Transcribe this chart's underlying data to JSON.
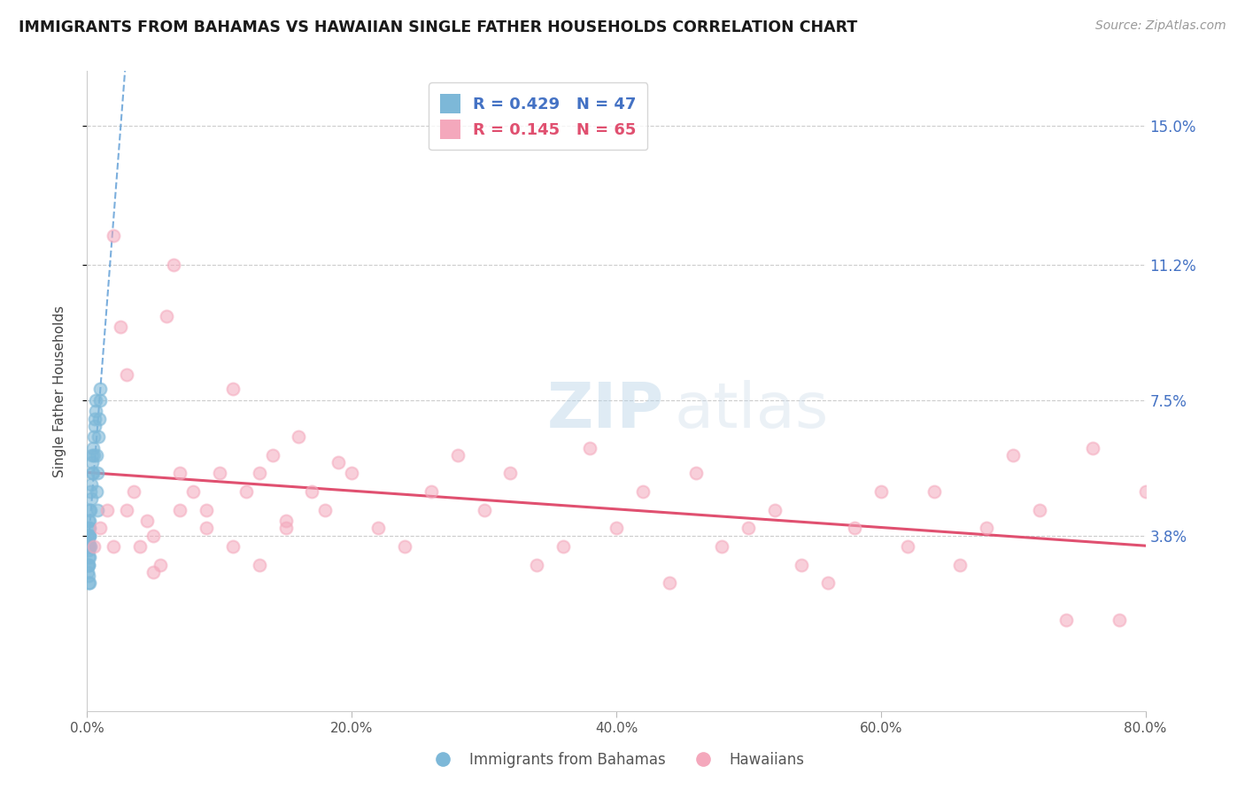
{
  "title": "IMMIGRANTS FROM BAHAMAS VS HAWAIIAN SINGLE FATHER HOUSEHOLDS CORRELATION CHART",
  "source": "Source: ZipAtlas.com",
  "ylabel": "Single Father Households",
  "r_blue": 0.429,
  "n_blue": 47,
  "r_pink": 0.145,
  "n_pink": 65,
  "blue_color": "#7db8d8",
  "pink_color": "#f4a8bc",
  "blue_line_color": "#5b9bd5",
  "pink_line_color": "#e05070",
  "legend_label_blue": "Immigrants from Bahamas",
  "legend_label_pink": "Hawaiians",
  "xlim": [
    0.0,
    80.0
  ],
  "ylim": [
    -1.0,
    16.5
  ],
  "yticks": [
    3.8,
    7.5,
    11.2,
    15.0
  ],
  "xticks": [
    0.0,
    20.0,
    40.0,
    60.0,
    80.0
  ],
  "blue_x": [
    0.05,
    0.05,
    0.05,
    0.05,
    0.08,
    0.08,
    0.08,
    0.08,
    0.1,
    0.1,
    0.1,
    0.1,
    0.12,
    0.12,
    0.12,
    0.15,
    0.15,
    0.15,
    0.15,
    0.18,
    0.18,
    0.2,
    0.2,
    0.22,
    0.22,
    0.25,
    0.28,
    0.3,
    0.35,
    0.38,
    0.4,
    0.42,
    0.45,
    0.48,
    0.5,
    0.55,
    0.6,
    0.62,
    0.65,
    0.7,
    0.72,
    0.75,
    0.8,
    0.85,
    0.9,
    0.95,
    1.0
  ],
  "blue_y": [
    3.0,
    3.5,
    3.8,
    2.8,
    3.2,
    3.6,
    2.5,
    3.0,
    3.4,
    3.8,
    4.2,
    2.7,
    3.5,
    4.0,
    3.0,
    3.8,
    4.5,
    3.2,
    2.5,
    3.5,
    4.0,
    4.2,
    3.8,
    4.5,
    3.5,
    5.0,
    4.8,
    5.2,
    6.0,
    5.5,
    5.8,
    5.5,
    6.2,
    6.0,
    6.5,
    6.8,
    7.0,
    7.2,
    7.5,
    5.0,
    6.0,
    4.5,
    5.5,
    6.5,
    7.0,
    7.5,
    7.8
  ],
  "pink_x": [
    0.5,
    1.0,
    1.5,
    2.0,
    2.5,
    3.0,
    3.5,
    4.0,
    4.5,
    5.0,
    5.5,
    6.0,
    6.5,
    7.0,
    8.0,
    9.0,
    10.0,
    11.0,
    12.0,
    13.0,
    14.0,
    15.0,
    16.0,
    17.0,
    18.0,
    19.0,
    20.0,
    22.0,
    24.0,
    26.0,
    28.0,
    30.0,
    32.0,
    34.0,
    36.0,
    38.0,
    40.0,
    42.0,
    44.0,
    46.0,
    48.0,
    50.0,
    52.0,
    54.0,
    56.0,
    58.0,
    60.0,
    62.0,
    64.0,
    66.0,
    68.0,
    70.0,
    72.0,
    74.0,
    76.0,
    78.0,
    80.0,
    3.0,
    5.0,
    7.0,
    9.0,
    11.0,
    13.0,
    15.0,
    2.0
  ],
  "pink_y": [
    3.5,
    4.0,
    4.5,
    12.0,
    9.5,
    8.2,
    5.0,
    3.5,
    4.2,
    2.8,
    3.0,
    9.8,
    11.2,
    5.5,
    5.0,
    4.5,
    5.5,
    7.8,
    5.0,
    5.5,
    6.0,
    4.2,
    6.5,
    5.0,
    4.5,
    5.8,
    5.5,
    4.0,
    3.5,
    5.0,
    6.0,
    4.5,
    5.5,
    3.0,
    3.5,
    6.2,
    4.0,
    5.0,
    2.5,
    5.5,
    3.5,
    4.0,
    4.5,
    3.0,
    2.5,
    4.0,
    5.0,
    3.5,
    5.0,
    3.0,
    4.0,
    6.0,
    4.5,
    1.5,
    6.2,
    1.5,
    5.0,
    4.5,
    3.8,
    4.5,
    4.0,
    3.5,
    3.0,
    4.0,
    3.5
  ]
}
